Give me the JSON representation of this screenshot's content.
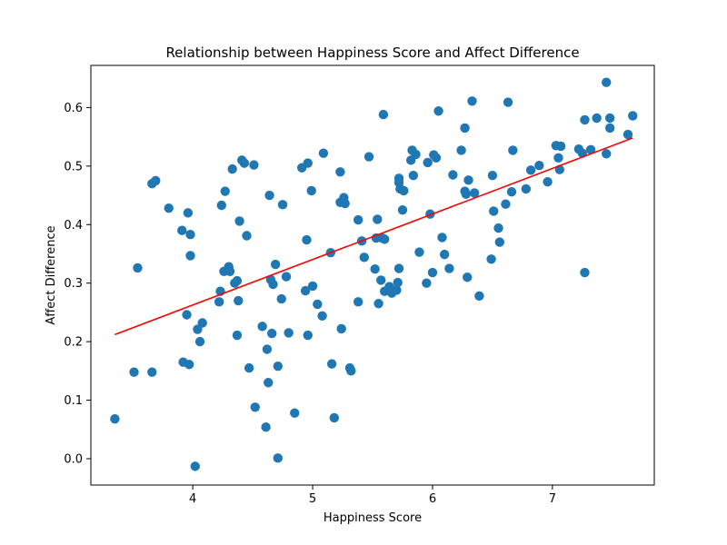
{
  "chart_data": {
    "type": "scatter",
    "title": "Relationship between Happiness Score and Affect Difference",
    "xlabel": "Happiness Score",
    "ylabel": "Affect Difference",
    "xlim": [
      3.15,
      7.85
    ],
    "ylim": [
      -0.045,
      0.672
    ],
    "xticks": [
      4,
      5,
      6,
      7
    ],
    "xtick_labels": [
      "4",
      "5",
      "6",
      "7"
    ],
    "yticks": [
      0.0,
      0.1,
      0.2,
      0.3,
      0.4,
      0.5,
      0.6
    ],
    "ytick_labels": [
      "0.0",
      "0.1",
      "0.2",
      "0.3",
      "0.4",
      "0.5",
      "0.6"
    ],
    "grid": false,
    "colors": {
      "points": "#1f77b4",
      "trend": "#ff0000",
      "axes": "#000000"
    },
    "series": [
      {
        "type": "scatter",
        "points": [
          [
            3.35,
            0.068
          ],
          [
            3.51,
            0.148
          ],
          [
            3.54,
            0.326
          ],
          [
            3.66,
            0.148
          ],
          [
            3.66,
            0.47
          ],
          [
            3.69,
            0.475
          ],
          [
            3.8,
            0.428
          ],
          [
            3.91,
            0.39
          ],
          [
            3.92,
            0.165
          ],
          [
            3.95,
            0.246
          ],
          [
            3.96,
            0.42
          ],
          [
            3.97,
            0.161
          ],
          [
            3.98,
            0.383
          ],
          [
            3.98,
            0.347
          ],
          [
            4.02,
            -0.013
          ],
          [
            4.04,
            0.221
          ],
          [
            4.06,
            0.2
          ],
          [
            4.08,
            0.232
          ],
          [
            4.22,
            0.268
          ],
          [
            4.23,
            0.286
          ],
          [
            4.24,
            0.433
          ],
          [
            4.26,
            0.32
          ],
          [
            4.27,
            0.457
          ],
          [
            4.3,
            0.328
          ],
          [
            4.31,
            0.32
          ],
          [
            4.33,
            0.495
          ],
          [
            4.35,
            0.3
          ],
          [
            4.37,
            0.304
          ],
          [
            4.37,
            0.211
          ],
          [
            4.38,
            0.27
          ],
          [
            4.39,
            0.406
          ],
          [
            4.41,
            0.51
          ],
          [
            4.43,
            0.505
          ],
          [
            4.45,
            0.381
          ],
          [
            4.47,
            0.155
          ],
          [
            4.51,
            0.502
          ],
          [
            4.52,
            0.088
          ],
          [
            4.58,
            0.226
          ],
          [
            4.61,
            0.054
          ],
          [
            4.62,
            0.187
          ],
          [
            4.63,
            0.13
          ],
          [
            4.64,
            0.45
          ],
          [
            4.65,
            0.306
          ],
          [
            4.66,
            0.214
          ],
          [
            4.67,
            0.298
          ],
          [
            4.69,
            0.332
          ],
          [
            4.71,
            0.158
          ],
          [
            4.71,
            0.001
          ],
          [
            4.74,
            0.273
          ],
          [
            4.75,
            0.434
          ],
          [
            4.78,
            0.311
          ],
          [
            4.8,
            0.215
          ],
          [
            4.85,
            0.078
          ],
          [
            4.91,
            0.497
          ],
          [
            4.94,
            0.287
          ],
          [
            4.95,
            0.374
          ],
          [
            4.96,
            0.211
          ],
          [
            4.96,
            0.505
          ],
          [
            4.99,
            0.458
          ],
          [
            5.0,
            0.295
          ],
          [
            5.04,
            0.264
          ],
          [
            5.08,
            0.244
          ],
          [
            5.09,
            0.522
          ],
          [
            5.15,
            0.352
          ],
          [
            5.16,
            0.162
          ],
          [
            5.18,
            0.07
          ],
          [
            5.23,
            0.438
          ],
          [
            5.23,
            0.49
          ],
          [
            5.24,
            0.222
          ],
          [
            5.26,
            0.446
          ],
          [
            5.27,
            0.436
          ],
          [
            5.31,
            0.155
          ],
          [
            5.32,
            0.15
          ],
          [
            5.38,
            0.268
          ],
          [
            5.38,
            0.408
          ],
          [
            5.41,
            0.372
          ],
          [
            5.43,
            0.344
          ],
          [
            5.47,
            0.516
          ],
          [
            5.52,
            0.324
          ],
          [
            5.53,
            0.377
          ],
          [
            5.54,
            0.409
          ],
          [
            5.55,
            0.265
          ],
          [
            5.57,
            0.305
          ],
          [
            5.58,
            0.377
          ],
          [
            5.59,
            0.588
          ],
          [
            5.6,
            0.286
          ],
          [
            5.6,
            0.375
          ],
          [
            5.64,
            0.294
          ],
          [
            5.66,
            0.283
          ],
          [
            5.7,
            0.288
          ],
          [
            5.71,
            0.301
          ],
          [
            5.72,
            0.325
          ],
          [
            5.72,
            0.479
          ],
          [
            5.72,
            0.472
          ],
          [
            5.73,
            0.461
          ],
          [
            5.75,
            0.425
          ],
          [
            5.76,
            0.458
          ],
          [
            5.82,
            0.51
          ],
          [
            5.83,
            0.527
          ],
          [
            5.84,
            0.484
          ],
          [
            5.86,
            0.52
          ],
          [
            5.89,
            0.353
          ],
          [
            5.95,
            0.3
          ],
          [
            5.96,
            0.506
          ],
          [
            5.98,
            0.418
          ],
          [
            6.0,
            0.318
          ],
          [
            6.01,
            0.519
          ],
          [
            6.03,
            0.514
          ],
          [
            6.05,
            0.594
          ],
          [
            6.08,
            0.378
          ],
          [
            6.1,
            0.349
          ],
          [
            6.14,
            0.325
          ],
          [
            6.17,
            0.485
          ],
          [
            6.24,
            0.527
          ],
          [
            6.27,
            0.457
          ],
          [
            6.27,
            0.565
          ],
          [
            6.28,
            0.452
          ],
          [
            6.29,
            0.31
          ],
          [
            6.3,
            0.476
          ],
          [
            6.33,
            0.611
          ],
          [
            6.35,
            0.454
          ],
          [
            6.39,
            0.278
          ],
          [
            6.49,
            0.341
          ],
          [
            6.5,
            0.484
          ],
          [
            6.51,
            0.423
          ],
          [
            6.55,
            0.394
          ],
          [
            6.56,
            0.37
          ],
          [
            6.61,
            0.435
          ],
          [
            6.63,
            0.609
          ],
          [
            6.66,
            0.456
          ],
          [
            6.67,
            0.527
          ],
          [
            6.78,
            0.461
          ],
          [
            6.82,
            0.493
          ],
          [
            6.89,
            0.501
          ],
          [
            6.96,
            0.473
          ],
          [
            7.03,
            0.535
          ],
          [
            7.05,
            0.514
          ],
          [
            7.06,
            0.494
          ],
          [
            7.07,
            0.534
          ],
          [
            7.22,
            0.529
          ],
          [
            7.25,
            0.522
          ],
          [
            7.27,
            0.318
          ],
          [
            7.27,
            0.579
          ],
          [
            7.32,
            0.528
          ],
          [
            7.37,
            0.582
          ],
          [
            7.45,
            0.521
          ],
          [
            7.45,
            0.643
          ],
          [
            7.48,
            0.565
          ],
          [
            7.48,
            0.582
          ],
          [
            7.63,
            0.554
          ],
          [
            7.67,
            0.586
          ]
        ]
      },
      {
        "type": "line",
        "points": [
          [
            3.35,
            0.212
          ],
          [
            7.67,
            0.548
          ]
        ]
      }
    ]
  }
}
